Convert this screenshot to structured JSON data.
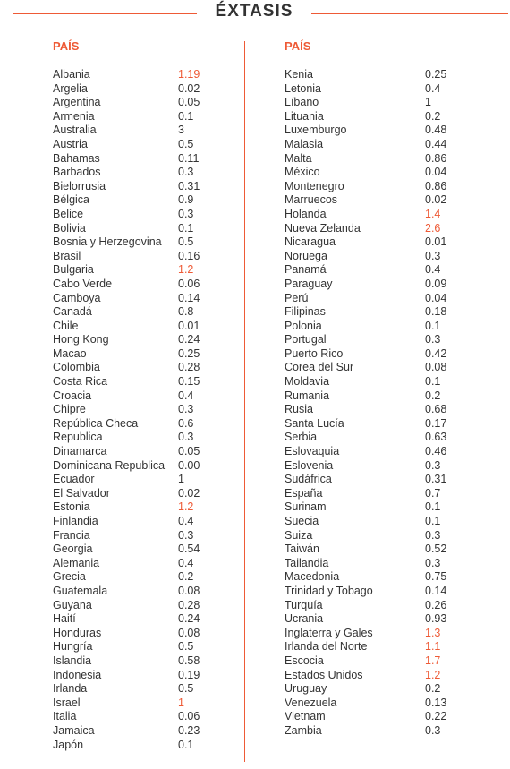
{
  "title": "ÉXTASIS",
  "highlight_color": "#ee5a36",
  "left_column": {
    "header": "PAÍS",
    "rows": [
      {
        "country": "Albania",
        "value": "1.19",
        "highlight": true
      },
      {
        "country": "Argelia",
        "value": "0.02",
        "highlight": false
      },
      {
        "country": "Argentina",
        "value": "0.05",
        "highlight": false
      },
      {
        "country": "Armenia",
        "value": "0.1",
        "highlight": false
      },
      {
        "country": "Australia",
        "value": "3",
        "highlight": false
      },
      {
        "country": "Austria",
        "value": "0.5",
        "highlight": false
      },
      {
        "country": "Bahamas",
        "value": "0.11",
        "highlight": false
      },
      {
        "country": "Barbados",
        "value": "0.3",
        "highlight": false
      },
      {
        "country": "Bielorrusia",
        "value": "0.31",
        "highlight": false
      },
      {
        "country": "Bélgica",
        "value": "0.9",
        "highlight": false
      },
      {
        "country": "Belice",
        "value": "0.3",
        "highlight": false
      },
      {
        "country": "Bolivia",
        "value": "0.1",
        "highlight": false
      },
      {
        "country": "Bosnia y Herzegovina",
        "value": "0.5",
        "highlight": false
      },
      {
        "country": "Brasil",
        "value": "0.16",
        "highlight": false
      },
      {
        "country": "Bulgaria",
        "value": "1.2",
        "highlight": true
      },
      {
        "country": "Cabo Verde",
        "value": "0.06",
        "highlight": false
      },
      {
        "country": "Camboya",
        "value": "0.14",
        "highlight": false
      },
      {
        "country": "Canadá",
        "value": "0.8",
        "highlight": false
      },
      {
        "country": "Chile",
        "value": "0.01",
        "highlight": false
      },
      {
        "country": "Hong Kong",
        "value": "0.24",
        "highlight": false
      },
      {
        "country": "Macao",
        "value": "0.25",
        "highlight": false
      },
      {
        "country": "Colombia",
        "value": "0.28",
        "highlight": false
      },
      {
        "country": "Costa Rica",
        "value": "0.15",
        "highlight": false
      },
      {
        "country": "Croacia",
        "value": "0.4",
        "highlight": false
      },
      {
        "country": "Chipre",
        "value": "0.3",
        "highlight": false
      },
      {
        "country": "República Checa",
        "value": "0.6",
        "highlight": false
      },
      {
        "country": "Republica",
        "value": "0.3",
        "highlight": false
      },
      {
        "country": "Dinamarca",
        "value": "0.05",
        "highlight": false
      },
      {
        "country": "Dominicana Republica",
        "value": "0.00",
        "highlight": false
      },
      {
        "country": "Ecuador",
        "value": "1",
        "highlight": false
      },
      {
        "country": "El Salvador",
        "value": "0.02",
        "highlight": false
      },
      {
        "country": "Estonia",
        "value": "1.2",
        "highlight": true
      },
      {
        "country": "Finlandia",
        "value": "0.4",
        "highlight": false
      },
      {
        "country": "Francia",
        "value": "0.3",
        "highlight": false
      },
      {
        "country": "Georgia",
        "value": "0.54",
        "highlight": false
      },
      {
        "country": "Alemania",
        "value": "0.4",
        "highlight": false
      },
      {
        "country": "Grecia",
        "value": "0.2",
        "highlight": false
      },
      {
        "country": "Guatemala",
        "value": "0.08",
        "highlight": false
      },
      {
        "country": "Guyana",
        "value": "0.28",
        "highlight": false
      },
      {
        "country": "Haití",
        "value": "0.24",
        "highlight": false
      },
      {
        "country": "Honduras",
        "value": "0.08",
        "highlight": false
      },
      {
        "country": "Hungría",
        "value": "0.5",
        "highlight": false
      },
      {
        "country": "Islandia",
        "value": "0.58",
        "highlight": false
      },
      {
        "country": "Indonesia",
        "value": "0.19",
        "highlight": false
      },
      {
        "country": "Irlanda",
        "value": "0.5",
        "highlight": false
      },
      {
        "country": "Israel",
        "value": "1",
        "highlight": true
      },
      {
        "country": "Italia",
        "value": "0.06",
        "highlight": false
      },
      {
        "country": "Jamaica",
        "value": "0.23",
        "highlight": false
      },
      {
        "country": "Japón",
        "value": "0.1",
        "highlight": false
      }
    ]
  },
  "right_column": {
    "header": "PAÍS",
    "rows": [
      {
        "country": "Kenia",
        "value": "0.25",
        "highlight": false
      },
      {
        "country": "Letonia",
        "value": "0.4",
        "highlight": false
      },
      {
        "country": "Líbano",
        "value": "1",
        "highlight": false
      },
      {
        "country": "Lituania",
        "value": "0.2",
        "highlight": false
      },
      {
        "country": "Luxemburgo",
        "value": "0.48",
        "highlight": false
      },
      {
        "country": "Malasia",
        "value": "0.44",
        "highlight": false
      },
      {
        "country": "Malta",
        "value": "0.86",
        "highlight": false
      },
      {
        "country": "México",
        "value": "0.04",
        "highlight": false
      },
      {
        "country": "Montenegro",
        "value": "0.86",
        "highlight": false
      },
      {
        "country": "Marruecos",
        "value": "0.02",
        "highlight": false
      },
      {
        "country": "Holanda",
        "value": "1.4",
        "highlight": true
      },
      {
        "country": "Nueva Zelanda",
        "value": "2.6",
        "highlight": true
      },
      {
        "country": "Nicaragua",
        "value": "0.01",
        "highlight": false
      },
      {
        "country": "Noruega",
        "value": "0.3",
        "highlight": false
      },
      {
        "country": "Panamá",
        "value": "0.4",
        "highlight": false
      },
      {
        "country": "Paraguay",
        "value": "0.09",
        "highlight": false
      },
      {
        "country": "Perú",
        "value": "0.04",
        "highlight": false
      },
      {
        "country": "Filipinas",
        "value": "0.18",
        "highlight": false
      },
      {
        "country": "Polonia",
        "value": "0.1",
        "highlight": false
      },
      {
        "country": "Portugal",
        "value": "0.3",
        "highlight": false
      },
      {
        "country": "Puerto Rico",
        "value": "0.42",
        "highlight": false
      },
      {
        "country": "Corea del Sur",
        "value": "0.08",
        "highlight": false
      },
      {
        "country": "Moldavia",
        "value": "0.1",
        "highlight": false
      },
      {
        "country": "Rumania",
        "value": "0.2",
        "highlight": false
      },
      {
        "country": "Rusia",
        "value": "0.68",
        "highlight": false
      },
      {
        "country": "Santa Lucía",
        "value": "0.17",
        "highlight": false
      },
      {
        "country": "Serbia",
        "value": "0.63",
        "highlight": false
      },
      {
        "country": "Eslovaquia",
        "value": "0.46",
        "highlight": false
      },
      {
        "country": "Eslovenia",
        "value": "0.3",
        "highlight": false
      },
      {
        "country": "Sudáfrica",
        "value": "0.31",
        "highlight": false
      },
      {
        "country": "España",
        "value": "0.7",
        "highlight": false
      },
      {
        "country": "Surinam",
        "value": "0.1",
        "highlight": false
      },
      {
        "country": "Suecia",
        "value": "0.1",
        "highlight": false
      },
      {
        "country": "Suiza",
        "value": "0.3",
        "highlight": false
      },
      {
        "country": "Taiwán",
        "value": "0.52",
        "highlight": false
      },
      {
        "country": "Tailandia",
        "value": "0.3",
        "highlight": false
      },
      {
        "country": "Macedonia",
        "value": "0.75",
        "highlight": false
      },
      {
        "country": "Trinidad y Tobago",
        "value": "0.14",
        "highlight": false
      },
      {
        "country": "Turquía",
        "value": "0.26",
        "highlight": false
      },
      {
        "country": "Ucrania",
        "value": "0.93",
        "highlight": false
      },
      {
        "country": "Inglaterra y Gales",
        "value": "1.3",
        "highlight": true
      },
      {
        "country": "Irlanda del Norte",
        "value": "1.1",
        "highlight": true
      },
      {
        "country": "Escocia",
        "value": "1.7",
        "highlight": true
      },
      {
        "country": "Estados Unidos",
        "value": "1.2",
        "highlight": true
      },
      {
        "country": "Uruguay",
        "value": "0.2",
        "highlight": false
      },
      {
        "country": "Venezuela",
        "value": "0.13",
        "highlight": false
      },
      {
        "country": "Vietnam",
        "value": "0.22",
        "highlight": false
      },
      {
        "country": "Zambia",
        "value": "0.3",
        "highlight": false
      }
    ]
  }
}
